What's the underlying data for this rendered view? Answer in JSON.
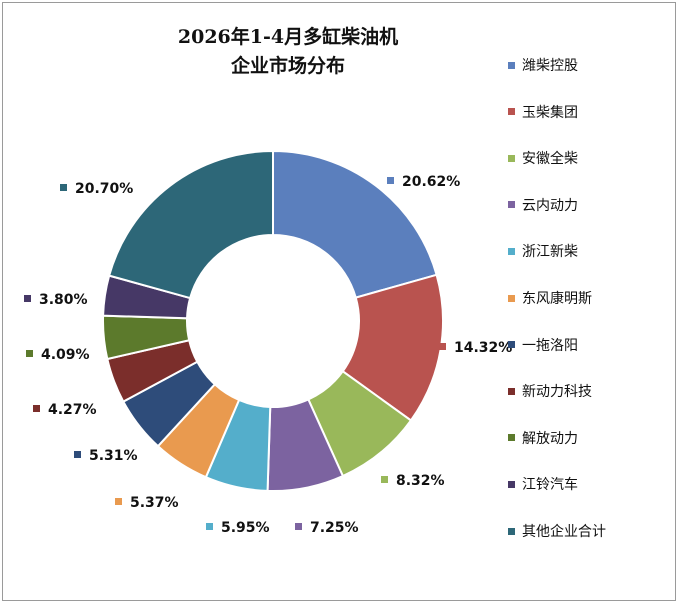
{
  "chart_data": {
    "type": "pie",
    "title": "2026年1-4月多缸柴油机",
    "subtitle": "企业市场分布",
    "donut": true,
    "legend_position": "right",
    "slices": [
      {
        "name": "潍柴控股",
        "value": 20.62,
        "label": "20.62%",
        "color": "#5b7fbd"
      },
      {
        "name": "玉柴集团",
        "value": 14.32,
        "label": "14.32%",
        "color": "#b9534f"
      },
      {
        "name": "安徽全柴",
        "value": 8.32,
        "label": "8.32%",
        "color": "#99b85a"
      },
      {
        "name": "云内动力",
        "value": 7.25,
        "label": "7.25%",
        "color": "#7c63a0"
      },
      {
        "name": "浙江新柴",
        "value": 5.95,
        "label": "5.95%",
        "color": "#54aecb"
      },
      {
        "name": "东风康明斯",
        "value": 5.37,
        "label": "5.37%",
        "color": "#e99a4f"
      },
      {
        "name": "一拖洛阳",
        "value": 5.31,
        "label": "5.31%",
        "color": "#2e4c7a"
      },
      {
        "name": "新动力科技",
        "value": 4.27,
        "label": "4.27%",
        "color": "#7b2e2b"
      },
      {
        "name": "解放动力",
        "value": 4.09,
        "label": "4.09%",
        "color": "#5c7a2c"
      },
      {
        "name": "江铃汽车",
        "value": 3.8,
        "label": "3.80%",
        "color": "#463866"
      },
      {
        "name": "其他企业合计",
        "value": 20.7,
        "label": "20.70%",
        "color": "#2d6778"
      }
    ]
  }
}
